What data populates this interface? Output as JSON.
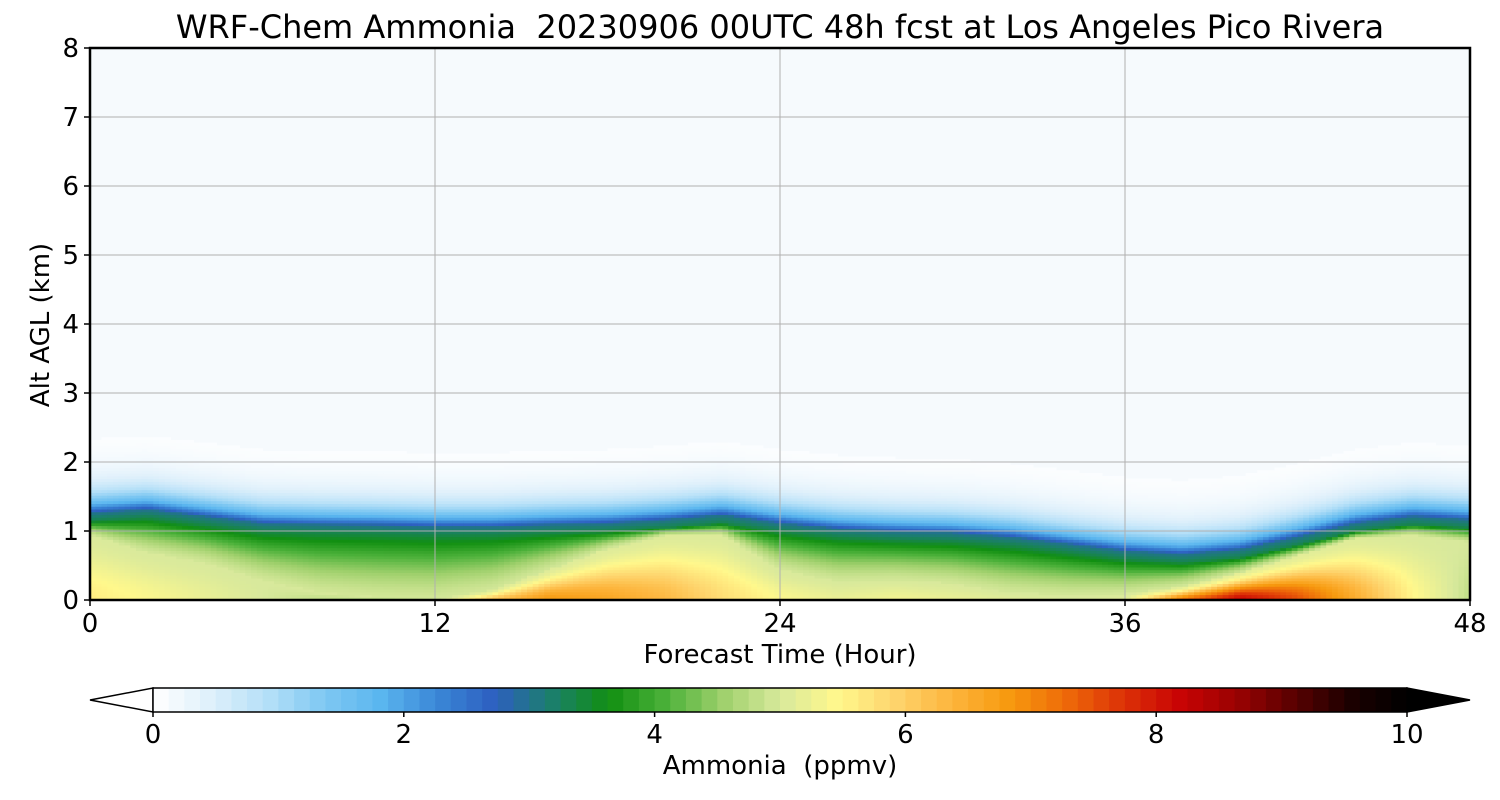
{
  "chart_data": {
    "type": "heatmap",
    "title": "WRF-Chem Ammonia  20230906 00UTC 48h fcst at Los Angeles Pico Rivera",
    "xlabel": "Forecast Time (Hour)",
    "ylabel": "Alt AGL (km)",
    "xlim": [
      0,
      48
    ],
    "ylim": [
      0,
      8
    ],
    "xticks": [
      "0",
      "12",
      "24",
      "36",
      "48"
    ],
    "yticks": [
      "0",
      "1",
      "2",
      "3",
      "4",
      "5",
      "6",
      "7",
      "8"
    ],
    "grid": true,
    "colorbar": {
      "label": "Ammonia  (ppmv)",
      "range": [
        0,
        10
      ],
      "ticks": [
        "0",
        "2",
        "4",
        "6",
        "8",
        "10"
      ],
      "extend": "both",
      "colors": [
        "#ffffff",
        "#dff0fb",
        "#b5e0f8",
        "#7fc8f2",
        "#5ab6ef",
        "#3a86d6",
        "#2d5fc0",
        "#1b7f6b",
        "#118f11",
        "#4cb13a",
        "#9fd06c",
        "#d8e99c",
        "#fff88c",
        "#fed56e",
        "#fdb53d",
        "#f79a0f",
        "#ee6b09",
        "#dd3307",
        "#c90404",
        "#9b0202",
        "#5a0101",
        "#1c0000",
        "#000000"
      ]
    },
    "x": [
      0,
      2,
      4,
      6,
      8,
      10,
      12,
      14,
      16,
      18,
      20,
      22,
      24,
      26,
      28,
      30,
      32,
      34,
      36,
      38,
      40,
      42,
      44,
      46,
      48
    ],
    "series": [
      {
        "name": "surface_value_ppmv",
        "values": [
          5.6,
          5.4,
          5.2,
          5.0,
          4.8,
          4.7,
          4.8,
          6.2,
          6.8,
          6.6,
          6.3,
          5.8,
          5.4,
          5.2,
          5.3,
          5.2,
          5.1,
          5.0,
          5.1,
          7.2,
          8.2,
          7.5,
          6.5,
          5.5,
          4.8
        ]
      },
      {
        "name": "mixing_height_km",
        "values": [
          1.15,
          1.2,
          1.1,
          1.0,
          0.98,
          0.97,
          0.95,
          0.95,
          0.98,
          1.0,
          1.05,
          1.12,
          1.0,
          0.92,
          0.88,
          0.86,
          0.8,
          0.7,
          0.6,
          0.55,
          0.62,
          0.8,
          1.0,
          1.1,
          1.05
        ]
      },
      {
        "name": "warm_layer_top_km",
        "values": [
          0.95,
          0.7,
          0.55,
          0.3,
          0.12,
          0.05,
          0.03,
          0.15,
          0.45,
          0.75,
          0.95,
          0.95,
          0.45,
          0.28,
          0.3,
          0.25,
          0.12,
          0.08,
          0.1,
          0.2,
          0.4,
          0.65,
          0.9,
          0.95,
          0.85
        ]
      }
    ]
  }
}
